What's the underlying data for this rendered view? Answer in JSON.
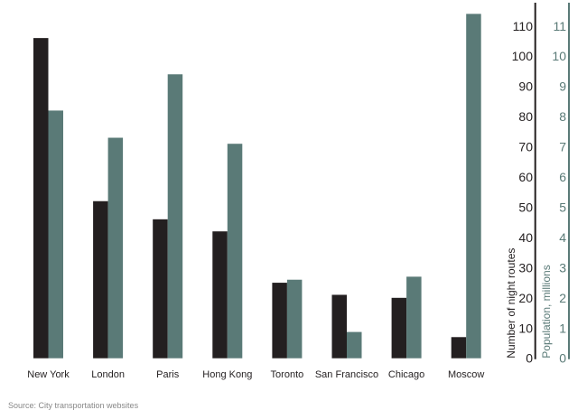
{
  "chart_data": {
    "type": "bar",
    "title": "",
    "categories": [
      "New York",
      "London",
      "Paris",
      "Hong Kong",
      "Toronto",
      "San Francisco",
      "Chicago",
      "Moscow"
    ],
    "series": [
      {
        "axis": "left",
        "color": "#231f20",
        "values": [
          106,
          52,
          46,
          42,
          25,
          21,
          20,
          7
        ]
      },
      {
        "axis": "right",
        "color": "#5a7a77",
        "values": [
          8.2,
          7.3,
          9.4,
          7.1,
          2.6,
          0.87,
          2.7,
          11.4
        ]
      }
    ],
    "y_left": {
      "label": "Number of night routes",
      "range": [
        0,
        115
      ],
      "ticks": [
        0,
        10,
        20,
        30,
        40,
        50,
        60,
        70,
        80,
        90,
        100,
        110
      ],
      "color": "#231f20"
    },
    "y_right": {
      "label": "Population, millions",
      "range": [
        0,
        11.5
      ],
      "ticks": [
        0,
        1,
        2,
        3,
        4,
        5,
        6,
        7,
        8,
        9,
        10,
        11
      ],
      "color": "#5a7a77"
    },
    "grid": false,
    "source": "Source: City transportation websites"
  }
}
